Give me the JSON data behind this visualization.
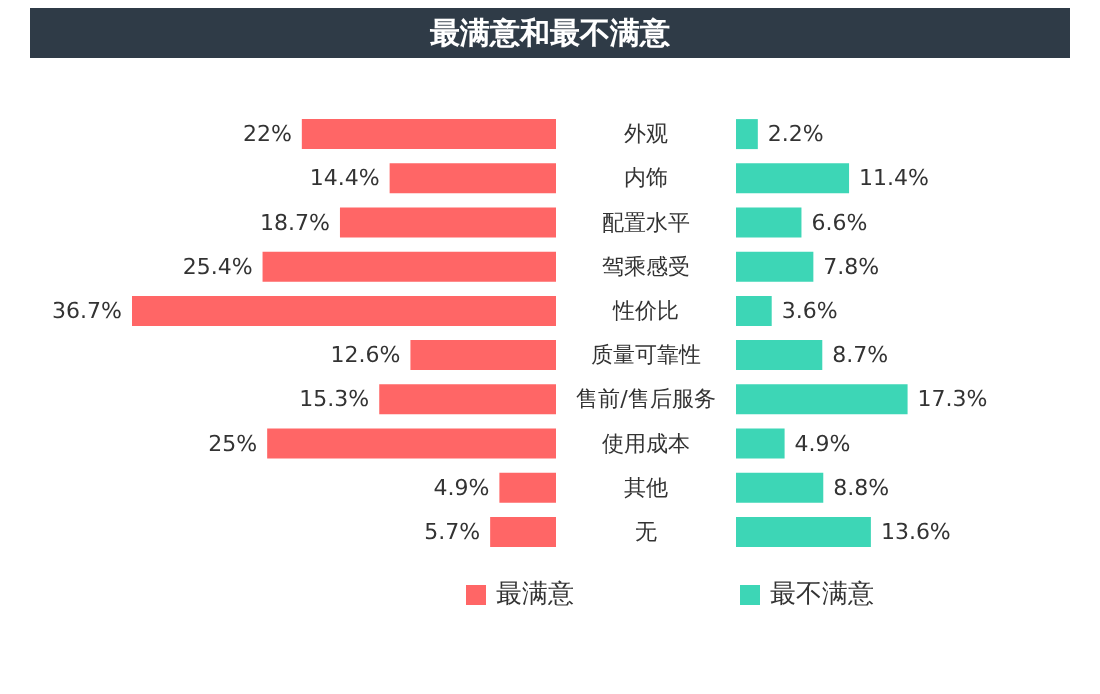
{
  "chart_data": [
    {
      "type": "bar",
      "orientation": "horizontal",
      "title": "最满意和最不满意",
      "categories": [
        "外观",
        "内饰",
        "配置水平",
        "驾乘感受",
        "性价比",
        "质量可靠性",
        "售前/售后服务",
        "使用成本",
        "其他",
        "无"
      ],
      "series": [
        {
          "name": "最满意",
          "color": "#ff6666",
          "values": [
            22,
            14.4,
            18.7,
            25.4,
            36.7,
            12.6,
            15.3,
            25,
            4.9,
            5.7
          ],
          "value_labels": [
            "22%",
            "14.4%",
            "18.7%",
            "25.4%",
            "36.7%",
            "12.6%",
            "15.3%",
            "25%",
            "4.9%",
            "5.7%"
          ]
        }
      ],
      "legend": "bottom"
    },
    {
      "type": "bar",
      "orientation": "horizontal",
      "tick_labels": false,
      "categories": [
        null,
        null,
        null,
        null,
        null,
        null,
        null,
        null,
        null,
        null
      ],
      "series": [
        {
          "name": "最不满意",
          "color": "#3dd6b6",
          "values": [
            2.2,
            11.4,
            6.6,
            7.8,
            3.6,
            8.7,
            17.3,
            4.9,
            8.8,
            13.6
          ],
          "value_labels": [
            "2.2%",
            "11.4%",
            "6.6%",
            "7.8%",
            "3.6%",
            "8.7%",
            "17.3%",
            "4.9%",
            "8.8%",
            "13.6%"
          ]
        }
      ],
      "legend": "bottom"
    }
  ]
}
